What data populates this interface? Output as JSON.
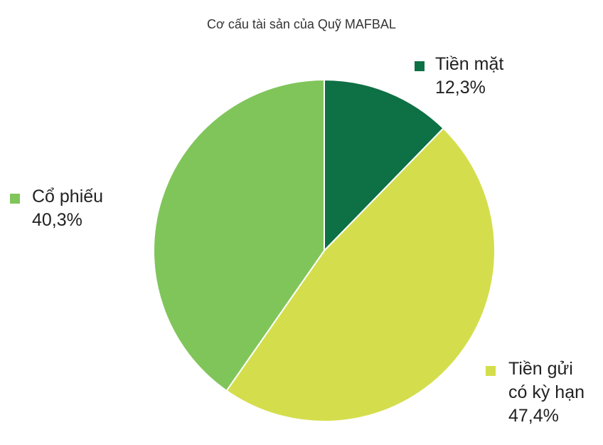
{
  "chart_data": {
    "type": "pie",
    "title": "Cơ cấu tài sản của Quỹ MAFBAL",
    "categories": [
      "Tiền mặt",
      "Tiền gửi có kỳ hạn",
      "Cổ phiếu"
    ],
    "values": [
      12.3,
      47.4,
      40.3
    ],
    "value_labels": [
      "12,3%",
      "47,4%",
      "40,3%"
    ],
    "colors": [
      "#0e7045",
      "#d4de4c",
      "#80c55a"
    ]
  }
}
